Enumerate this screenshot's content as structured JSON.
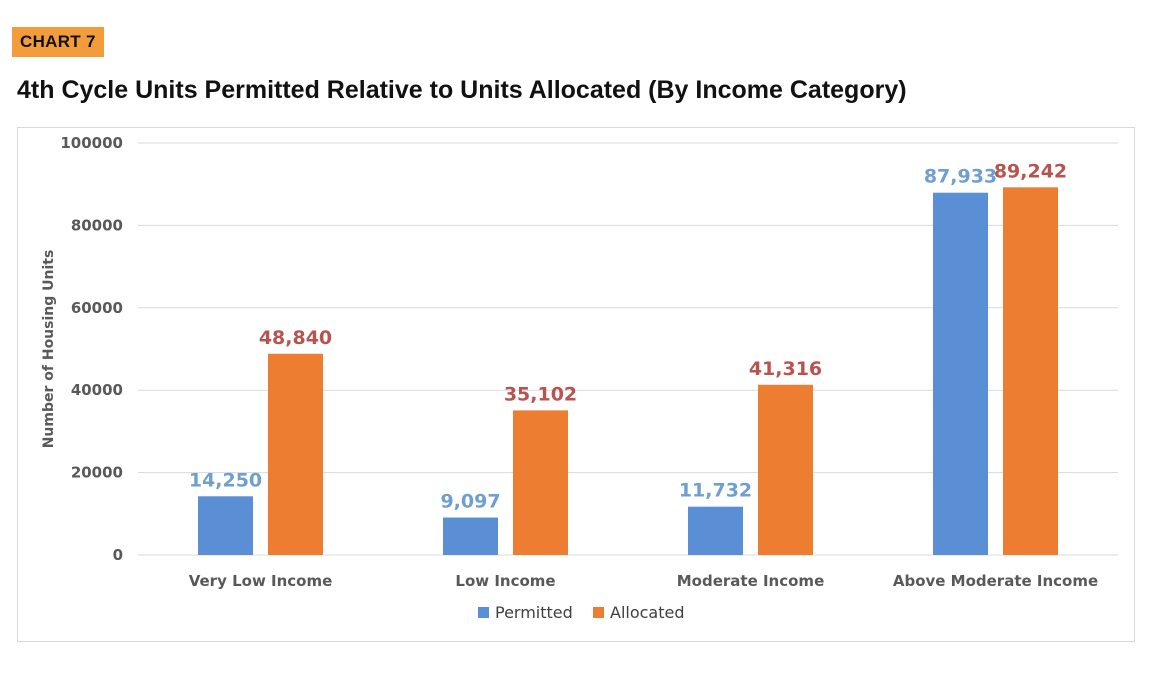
{
  "badge": "CHART 7",
  "title": "4th Cycle Units Permitted Relative to Units Allocated (By Income Category)",
  "colors": {
    "permitted": "#5b8fd5",
    "allocated": "#ed7d31",
    "permitted_label": "#6f9fd0",
    "allocated_label": "#b85450",
    "grid": "#d9d9d9",
    "axis_text": "#595959"
  },
  "chart_data": {
    "type": "bar",
    "title": "4th Cycle Units Permitted Relative to Units Allocated (By Income Category)",
    "xlabel": "",
    "ylabel": "Number of Housing Units",
    "ylim": [
      0,
      100000
    ],
    "yticks": [
      "0",
      "20000",
      "40000",
      "60000",
      "80000",
      "100000"
    ],
    "categories": [
      "Very Low Income",
      "Low Income",
      "Moderate Income",
      "Above Moderate Income"
    ],
    "series": [
      {
        "name": "Permitted",
        "values": [
          14250,
          9097,
          11732,
          87933
        ],
        "labels": [
          "14,250",
          "9,097",
          "11,732",
          "87,933"
        ]
      },
      {
        "name": "Allocated",
        "values": [
          48840,
          35102,
          41316,
          89242
        ],
        "labels": [
          "48,840",
          "35,102",
          "41,316",
          "89,242"
        ]
      }
    ],
    "grid": true,
    "legend": "bottom-center"
  }
}
